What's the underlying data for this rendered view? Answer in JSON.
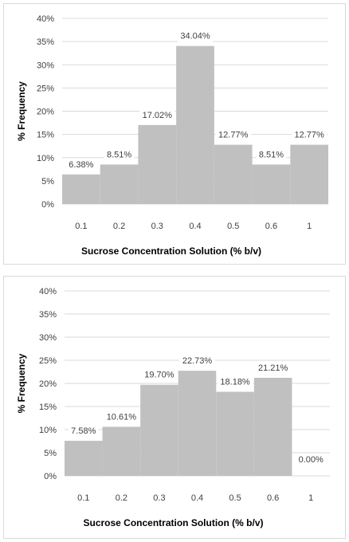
{
  "colors": {
    "bar": "#c0c0c0",
    "grid": "#d9d9d9",
    "label_bg": "#ffffff"
  },
  "chart_data": [
    {
      "type": "bar",
      "categories": [
        "0.1",
        "0.2",
        "0.3",
        "0.4",
        "0.5",
        "0.6",
        "1"
      ],
      "values": [
        6.38,
        8.51,
        17.02,
        34.04,
        12.77,
        8.51,
        12.77
      ],
      "data_labels": [
        "6.38%",
        "8.51%",
        "17.02%",
        "34.04%",
        "12.77%",
        "8.51%",
        "12.77%"
      ],
      "title": "",
      "xlabel": "Sucrose Concentration Solution (% b/v)",
      "ylabel": "% Frequency",
      "ylim": [
        0,
        40
      ],
      "yticks": [
        "0%",
        "5%",
        "10%",
        "15%",
        "20%",
        "25%",
        "30%",
        "35%",
        "40%"
      ],
      "grid": true,
      "legend": "none"
    },
    {
      "type": "bar",
      "categories": [
        "0.1",
        "0.2",
        "0.3",
        "0.4",
        "0.5",
        "0.6",
        "1"
      ],
      "values": [
        7.58,
        10.61,
        19.7,
        22.73,
        18.18,
        21.21,
        0.0
      ],
      "data_labels": [
        "7.58%",
        "10.61%",
        "19.70%",
        "22.73%",
        "18.18%",
        "21.21%",
        "0.00%"
      ],
      "title": "",
      "xlabel": "Sucrose Concentration Solution (% b/v)",
      "ylabel": "% Frequency",
      "ylim": [
        0,
        40
      ],
      "yticks": [
        "0%",
        "5%",
        "10%",
        "15%",
        "20%",
        "25%",
        "30%",
        "35%",
        "40%"
      ],
      "grid": true,
      "legend": "none"
    }
  ]
}
